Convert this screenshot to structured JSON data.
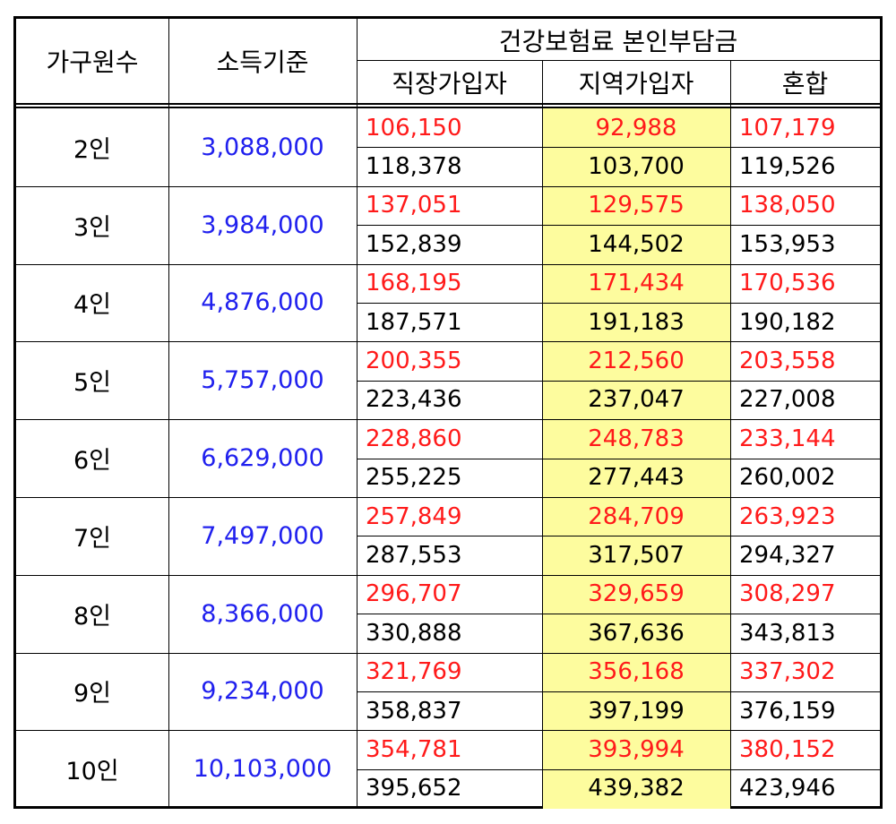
{
  "headers": {
    "household": "가구원수",
    "income": "소득기준",
    "premium": "건강보험료 본인부담금",
    "workplace": "직장가입자",
    "regional": "지역가입자",
    "mixed": "혼합"
  },
  "rows": [
    {
      "size": "2인",
      "income": "3,088,000",
      "top": [
        "106,150",
        "92,988",
        "107,179"
      ],
      "bottom": [
        "118,378",
        "103,700",
        "119,526"
      ]
    },
    {
      "size": "3인",
      "income": "3,984,000",
      "top": [
        "137,051",
        "129,575",
        "138,050"
      ],
      "bottom": [
        "152,839",
        "144,502",
        "153,953"
      ]
    },
    {
      "size": "4인",
      "income": "4,876,000",
      "top": [
        "168,195",
        "171,434",
        "170,536"
      ],
      "bottom": [
        "187,571",
        "191,183",
        "190,182"
      ]
    },
    {
      "size": "5인",
      "income": "5,757,000",
      "top": [
        "200,355",
        "212,560",
        "203,558"
      ],
      "bottom": [
        "223,436",
        "237,047",
        "227,008"
      ]
    },
    {
      "size": "6인",
      "income": "6,629,000",
      "top": [
        "228,860",
        "248,783",
        "233,144"
      ],
      "bottom": [
        "255,225",
        "277,443",
        "260,002"
      ]
    },
    {
      "size": "7인",
      "income": "7,497,000",
      "top": [
        "257,849",
        "284,709",
        "263,923"
      ],
      "bottom": [
        "287,553",
        "317,507",
        "294,327"
      ]
    },
    {
      "size": "8인",
      "income": "8,366,000",
      "top": [
        "296,707",
        "329,659",
        "308,297"
      ],
      "bottom": [
        "330,888",
        "367,636",
        "343,813"
      ]
    },
    {
      "size": "9인",
      "income": "9,234,000",
      "top": [
        "321,769",
        "356,168",
        "337,302"
      ],
      "bottom": [
        "358,837",
        "397,199",
        "376,159"
      ]
    },
    {
      "size": "10인",
      "income": "10,103,000",
      "top": [
        "354,781",
        "393,994",
        "380,152"
      ],
      "bottom": [
        "395,652",
        "439,382",
        "423,946"
      ]
    }
  ],
  "colors": {
    "top_values": "#ff1a1a",
    "bottom_values": "#000000",
    "income": "#2020ee",
    "regional_highlight": "#fdfc9e"
  }
}
